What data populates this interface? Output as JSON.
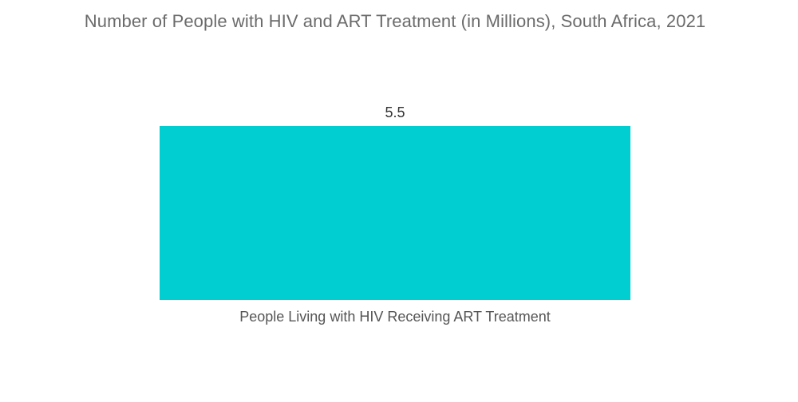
{
  "chart_data": {
    "type": "bar",
    "title": "Number of People with HIV and ART Treatment (in Millions), South Africa, 2021",
    "categories": [
      "People Living with HIV Receiving ART Treatment"
    ],
    "values": [
      5.5
    ],
    "data_labels": [
      "5.5"
    ],
    "xlabel": "",
    "ylabel": "",
    "ylim": [
      0,
      5.5
    ],
    "grid": false,
    "legend": "none",
    "bar_color": "#00CED1"
  }
}
